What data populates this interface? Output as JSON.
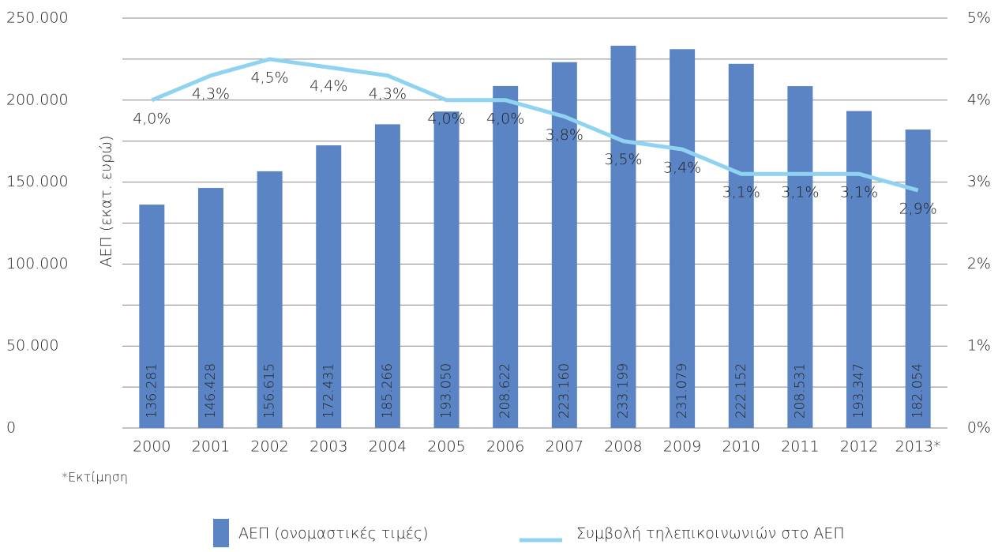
{
  "chart_data": {
    "type": "bar_line",
    "categories": [
      "2000",
      "2001",
      "2002",
      "2003",
      "2004",
      "2005",
      "2006",
      "2007",
      "2008",
      "2009",
      "2010",
      "2011",
      "2012",
      "2013*"
    ],
    "ylabel": "ΑΕΠ (εκατ. ευρώ)",
    "ylim": [
      0,
      250000
    ],
    "yticks": [
      {
        "value": 0,
        "label": "0"
      },
      {
        "value": 50000,
        "label": "50.000"
      },
      {
        "value": 100000,
        "label": "100.000"
      },
      {
        "value": 150000,
        "label": "150.000"
      },
      {
        "value": 200000,
        "label": "200.000"
      },
      {
        "value": 250000,
        "label": "250.000"
      }
    ],
    "y_minor_grid": [
      25000,
      75000,
      125000,
      175000,
      225000
    ],
    "y2lim": [
      0,
      5
    ],
    "y2ticks": [
      {
        "value": 0,
        "label": "0%"
      },
      {
        "value": 1,
        "label": "1%"
      },
      {
        "value": 2,
        "label": "2%"
      },
      {
        "value": 3,
        "label": "3%"
      },
      {
        "value": 4,
        "label": "4%"
      },
      {
        "value": 5,
        "label": "5%"
      }
    ],
    "grid": true,
    "series": [
      {
        "name": "ΑΕΠ (ονομαστικές τιμές)",
        "type": "bar",
        "color": "#5b84c4",
        "values": [
          136281,
          146428,
          156615,
          172431,
          185266,
          193050,
          208622,
          223160,
          233199,
          231079,
          222152,
          208531,
          193347,
          182054
        ],
        "value_labels": [
          "136.281",
          "146.428",
          "156.615",
          "172.431",
          "185.266",
          "193.050",
          "208.622",
          "223.160",
          "233.199",
          "231.079",
          "222.152",
          "208.531",
          "193.347",
          "182.054"
        ]
      },
      {
        "name": "Συμβολή τηλεπικοινωνιών στο ΑΕΠ",
        "type": "line",
        "axis": "y2",
        "color": "#8fd3f0",
        "values": [
          4.0,
          4.3,
          4.5,
          4.4,
          4.3,
          4.0,
          4.0,
          3.8,
          3.5,
          3.4,
          3.1,
          3.1,
          3.1,
          2.9
        ],
        "value_labels": [
          "4,0%",
          "4,3%",
          "4,5%",
          "4,4%",
          "4,3%",
          "4,0%",
          "4,0%",
          "3,8%",
          "3,5%",
          "3,4%",
          "3,1%",
          "3,1%",
          "3,1%",
          "2,9%"
        ]
      }
    ],
    "footnote": "*Εκτίμηση",
    "legend": "bottom"
  }
}
